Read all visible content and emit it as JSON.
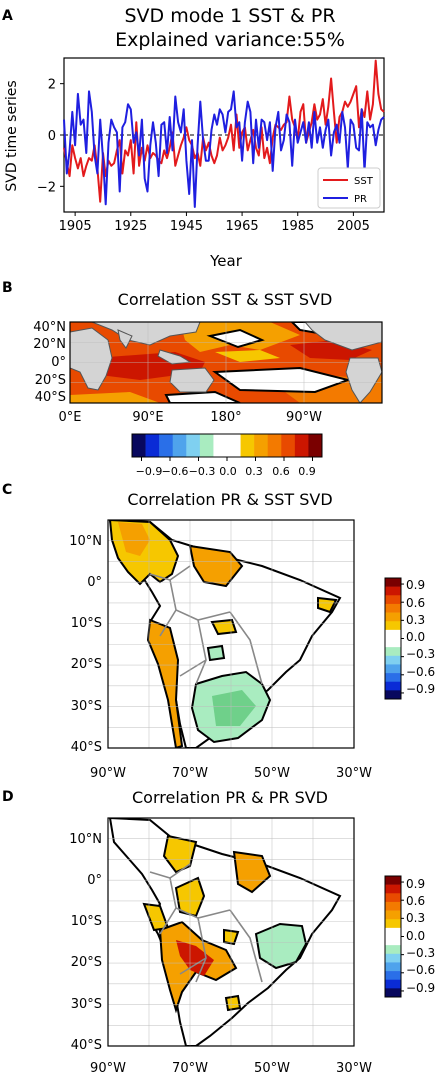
{
  "panel_a": {
    "letter": "A",
    "title_line1": "SVD mode 1 SST & PR",
    "title_line2": "Explained variance:55%",
    "xlabel": "Year",
    "ylabel": "SVD time series",
    "legend": [
      "SST",
      "PR"
    ]
  },
  "panel_b": {
    "letter": "B",
    "title": "Correlation SST & SST SVD",
    "lat_labels": [
      "40°N",
      "20°N",
      "0°",
      "20°S",
      "40°S"
    ],
    "lon_labels": [
      "0°E",
      "90°E",
      "180°",
      "90°W"
    ]
  },
  "colorbar_h": {
    "tick_labels": [
      "−0.9",
      "−0.6",
      "−0.3",
      "0.0",
      "0.3",
      "0.6",
      "0.9"
    ]
  },
  "panel_c": {
    "letter": "C",
    "title": "Correlation PR & SST SVD",
    "lat_labels": [
      "10°N",
      "0°",
      "10°S",
      "20°S",
      "30°S",
      "40°S"
    ],
    "lon_labels": [
      "90°W",
      "70°W",
      "50°W",
      "30°W"
    ],
    "colorbar_ticks": [
      "0.9",
      "0.6",
      "0.3",
      "0.0",
      "−0.3",
      "−0.6",
      "−0.9"
    ]
  },
  "panel_d": {
    "letter": "D",
    "title": "Correlation PR & PR SVD",
    "lat_labels": [
      "10°N",
      "0°",
      "10°S",
      "20°S",
      "30°S",
      "40°S"
    ],
    "lon_labels": [
      "90°W",
      "70°W",
      "50°W",
      "30°W"
    ],
    "colorbar_ticks": [
      "0.9",
      "0.6",
      "0.3",
      "0.0",
      "−0.3",
      "−0.6",
      "−0.9"
    ]
  },
  "colors": {
    "sst": "#e31a1c",
    "pr": "#1f1fe0",
    "land": "#d4d4d4",
    "scale": [
      "#08085e",
      "#0a2bd6",
      "#2a6fe8",
      "#4fa3ec",
      "#7fd0f0",
      "#a9ecc0",
      "#ffffff",
      "#ffffff",
      "#f6c700",
      "#f5a000",
      "#f37a00",
      "#e84a00",
      "#cc1600",
      "#7a0000"
    ]
  },
  "chart_data": [
    {
      "type": "line",
      "title": "SVD mode 1 SST & PR\nExplained variance:55%",
      "xlabel": "Year",
      "ylabel": "SVD time series",
      "xlim": [
        1901,
        2016
      ],
      "ylim": [
        -3,
        3
      ],
      "xticks": [
        1905,
        1925,
        1945,
        1965,
        1985,
        2005
      ],
      "yticks": [
        -2,
        0,
        2
      ],
      "legend_loc": "lower-right",
      "x": [
        1901,
        1902,
        1903,
        1904,
        1905,
        1906,
        1907,
        1908,
        1909,
        1910,
        1911,
        1912,
        1913,
        1914,
        1915,
        1916,
        1917,
        1918,
        1919,
        1920,
        1921,
        1922,
        1923,
        1924,
        1925,
        1926,
        1927,
        1928,
        1929,
        1930,
        1931,
        1932,
        1933,
        1934,
        1935,
        1936,
        1937,
        1938,
        1939,
        1940,
        1941,
        1942,
        1943,
        1944,
        1945,
        1946,
        1947,
        1948,
        1949,
        1950,
        1951,
        1952,
        1953,
        1954,
        1955,
        1956,
        1957,
        1958,
        1959,
        1960,
        1961,
        1962,
        1963,
        1964,
        1965,
        1966,
        1967,
        1968,
        1969,
        1970,
        1971,
        1972,
        1973,
        1974,
        1975,
        1976,
        1977,
        1978,
        1979,
        1980,
        1981,
        1982,
        1983,
        1984,
        1985,
        1986,
        1987,
        1988,
        1989,
        1990,
        1991,
        1992,
        1993,
        1994,
        1995,
        1996,
        1997,
        1998,
        1999,
        2000,
        2001,
        2002,
        2003,
        2004,
        2005,
        2006,
        2007,
        2008,
        2009,
        2010,
        2011,
        2012,
        2013,
        2014,
        2015,
        2016
      ],
      "series": [
        {
          "name": "SST",
          "values": [
            -0.5,
            -1.1,
            -1.6,
            -0.4,
            -0.9,
            -1.3,
            -0.9,
            -1.6,
            -1.2,
            -0.9,
            -1.0,
            -0.4,
            -1.3,
            -2.6,
            -0.7,
            -1.6,
            -1.0,
            -1.2,
            -1.1,
            -0.6,
            -0.2,
            -1.5,
            -0.6,
            -0.8,
            -0.2,
            -1.5,
            0.5,
            -1.2,
            -0.5,
            -1.0,
            -0.4,
            -0.9,
            -0.7,
            -0.8,
            -1.0,
            -1.1,
            -0.6,
            -0.9,
            -0.5,
            0.1,
            -1.2,
            -0.8,
            -0.4,
            -0.1,
            0.3,
            -0.2,
            -0.4,
            -0.9,
            -0.7,
            -1.2,
            -0.1,
            -0.6,
            -0.3,
            -0.8,
            -1.1,
            -0.8,
            -0.1,
            -0.6,
            -0.4,
            -0.1,
            0.4,
            -0.6,
            0.8,
            -0.5,
            0.1,
            0.3,
            -0.6,
            -0.2,
            0.2,
            -0.5,
            -0.8,
            0.3,
            -0.9,
            -0.5,
            -1.1,
            -0.1,
            0.4,
            0.3,
            0.2,
            0.4,
            0.5,
            1.5,
            0.6,
            0.3,
            -0.2,
            0.9,
            1.2,
            -0.3,
            0.1,
            0.5,
            1.2,
            0.6,
            0.8,
            1.4,
            0.4,
            1.1,
            2.2,
            0.9,
            -0.3,
            0.7,
            0.9,
            1.3,
            1.1,
            1.3,
            1.6,
            1.9,
            0.3,
            1.0,
            0.7,
            1.7,
            0.6,
            1.2,
            2.9,
            1.6,
            1.0,
            0.9
          ]
        },
        {
          "name": "PR",
          "values": [
            0.6,
            -1.5,
            -0.6,
            0.9,
            -0.4,
            1.6,
            0.4,
            0.6,
            -0.7,
            1.7,
            0.9,
            -0.8,
            -1.5,
            0.6,
            -0.9,
            -2.7,
            -0.3,
            0.6,
            0.3,
            0.1,
            -2.2,
            0.3,
            0.5,
            1.2,
            1.0,
            -0.3,
            0.1,
            -0.8,
            0.6,
            -1.7,
            -2.2,
            -0.4,
            0.5,
            -0.3,
            -1.6,
            0.4,
            0.5,
            -0.7,
            0.7,
            -0.6,
            1.5,
            0.5,
            0.1,
            1.0,
            -1.0,
            -2.3,
            -0.2,
            -2.8,
            -0.4,
            1.3,
            -0.2,
            -1.0,
            -1.0,
            0.2,
            0.8,
            0.4,
            1.0,
            0.8,
            0.1,
            0.9,
            1.0,
            1.7,
            0.3,
            0.5,
            -1.0,
            0.5,
            1.3,
            0.9,
            -1.1,
            0.6,
            -0.5,
            0.6,
            0.5,
            -0.2,
            0.5,
            -1.4,
            0.3,
            0.9,
            -0.6,
            -0.2,
            0.8,
            0.5,
            -1.2,
            0.6,
            -0.3,
            0.1,
            0.5,
            -0.3,
            0.5,
            -0.5,
            0.9,
            -0.3,
            0.3,
            -0.5,
            0.2,
            0.6,
            -0.8,
            0.1,
            0.4,
            -0.3,
            0.9,
            0.3,
            -1.3,
            0.6,
            0.4,
            -0.5,
            -0.6,
            1.0,
            -1.4,
            0.5,
            0.3,
            0.4,
            -0.4,
            0.2,
            0.6,
            0.7
          ]
        }
      ]
    },
    {
      "type": "heatmap",
      "title": "Correlation SST & SST SVD",
      "lat_range": [
        -45,
        45
      ],
      "lon_range": [
        0,
        360
      ],
      "colorbar": {
        "orientation": "horizontal",
        "range": [
          -1,
          1
        ],
        "ticks": [
          -0.9,
          -0.6,
          -0.3,
          0.0,
          0.3,
          0.6,
          0.9
        ]
      }
    },
    {
      "type": "heatmap",
      "title": "Correlation PR & SST SVD",
      "lat_range": [
        -40,
        15
      ],
      "lon_range": [
        -90,
        -30
      ],
      "colorbar": {
        "orientation": "vertical",
        "range": [
          -1,
          1
        ],
        "ticks": [
          0.9,
          0.6,
          0.3,
          0.0,
          -0.3,
          -0.6,
          -0.9
        ]
      }
    },
    {
      "type": "heatmap",
      "title": "Correlation PR & PR SVD",
      "lat_range": [
        -40,
        15
      ],
      "lon_range": [
        -90,
        -30
      ],
      "colorbar": {
        "orientation": "vertical",
        "range": [
          -1,
          1
        ],
        "ticks": [
          0.9,
          0.6,
          0.3,
          0.0,
          -0.3,
          -0.6,
          -0.9
        ]
      }
    }
  ]
}
